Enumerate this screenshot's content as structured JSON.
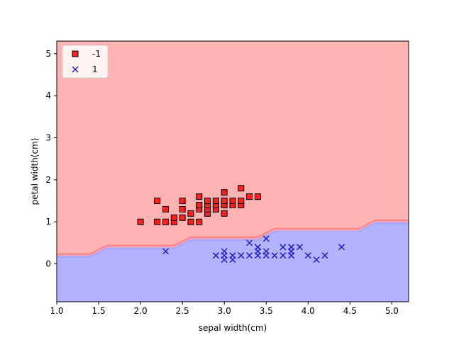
{
  "chart_data": {
    "type": "scatter",
    "title": "",
    "xlabel": "sepal width(cm)",
    "ylabel": "petal width(cm)",
    "xlim": [
      1.0,
      5.2
    ],
    "ylim": [
      -0.9,
      5.3
    ],
    "xticks": [
      "1.0",
      "1.5",
      "2.0",
      "2.5",
      "3.0",
      "3.5",
      "4.0",
      "4.5",
      "5.0"
    ],
    "yticks": [
      "0",
      "1",
      "2",
      "3",
      "4",
      "5"
    ],
    "grid": false,
    "legend_position": "top-left",
    "decision_boundary": {
      "x": [
        1.0,
        1.4,
        1.6,
        2.4,
        2.6,
        3.4,
        3.6,
        4.6,
        4.8,
        5.2
      ],
      "y": [
        0.2,
        0.2,
        0.4,
        0.4,
        0.6,
        0.6,
        0.8,
        0.8,
        1.0,
        1.0
      ],
      "region_above_color": "#ffb3b3",
      "region_below_color": "#b3b3ff",
      "boundary_colors": [
        "#ff8080",
        "#e6a6c8",
        "#a6a6ff"
      ]
    },
    "series": [
      {
        "name": "-1",
        "marker": "square",
        "color": "#ff2020",
        "edge_color": "#000000",
        "points": [
          [
            2.0,
            1.0
          ],
          [
            2.2,
            1.0
          ],
          [
            2.2,
            1.5
          ],
          [
            2.3,
            1.0
          ],
          [
            2.3,
            1.3
          ],
          [
            2.4,
            1.0
          ],
          [
            2.4,
            1.1
          ],
          [
            2.5,
            1.1
          ],
          [
            2.5,
            1.3
          ],
          [
            2.5,
            1.5
          ],
          [
            2.6,
            1.0
          ],
          [
            2.6,
            1.2
          ],
          [
            2.7,
            1.0
          ],
          [
            2.7,
            1.3
          ],
          [
            2.7,
            1.4
          ],
          [
            2.7,
            1.6
          ],
          [
            2.8,
            1.2
          ],
          [
            2.8,
            1.3
          ],
          [
            2.8,
            1.4
          ],
          [
            2.8,
            1.5
          ],
          [
            2.9,
            1.3
          ],
          [
            2.9,
            1.4
          ],
          [
            2.9,
            1.5
          ],
          [
            3.0,
            1.2
          ],
          [
            3.0,
            1.4
          ],
          [
            3.0,
            1.5
          ],
          [
            3.0,
            1.7
          ],
          [
            3.1,
            1.4
          ],
          [
            3.1,
            1.5
          ],
          [
            3.2,
            1.4
          ],
          [
            3.2,
            1.5
          ],
          [
            3.2,
            1.8
          ],
          [
            3.3,
            1.6
          ],
          [
            3.4,
            1.6
          ]
        ]
      },
      {
        "name": "1",
        "marker": "x",
        "color": "#2020cc",
        "points": [
          [
            2.3,
            0.3
          ],
          [
            2.9,
            0.2
          ],
          [
            3.0,
            0.1
          ],
          [
            3.0,
            0.2
          ],
          [
            3.0,
            0.3
          ],
          [
            3.1,
            0.1
          ],
          [
            3.1,
            0.2
          ],
          [
            3.2,
            0.2
          ],
          [
            3.3,
            0.2
          ],
          [
            3.3,
            0.5
          ],
          [
            3.4,
            0.2
          ],
          [
            3.4,
            0.3
          ],
          [
            3.4,
            0.4
          ],
          [
            3.5,
            0.2
          ],
          [
            3.5,
            0.3
          ],
          [
            3.5,
            0.6
          ],
          [
            3.6,
            0.2
          ],
          [
            3.7,
            0.2
          ],
          [
            3.7,
            0.4
          ],
          [
            3.8,
            0.2
          ],
          [
            3.8,
            0.3
          ],
          [
            3.8,
            0.4
          ],
          [
            3.9,
            0.4
          ],
          [
            4.0,
            0.2
          ],
          [
            4.1,
            0.1
          ],
          [
            4.2,
            0.2
          ],
          [
            4.4,
            0.4
          ]
        ]
      }
    ]
  }
}
